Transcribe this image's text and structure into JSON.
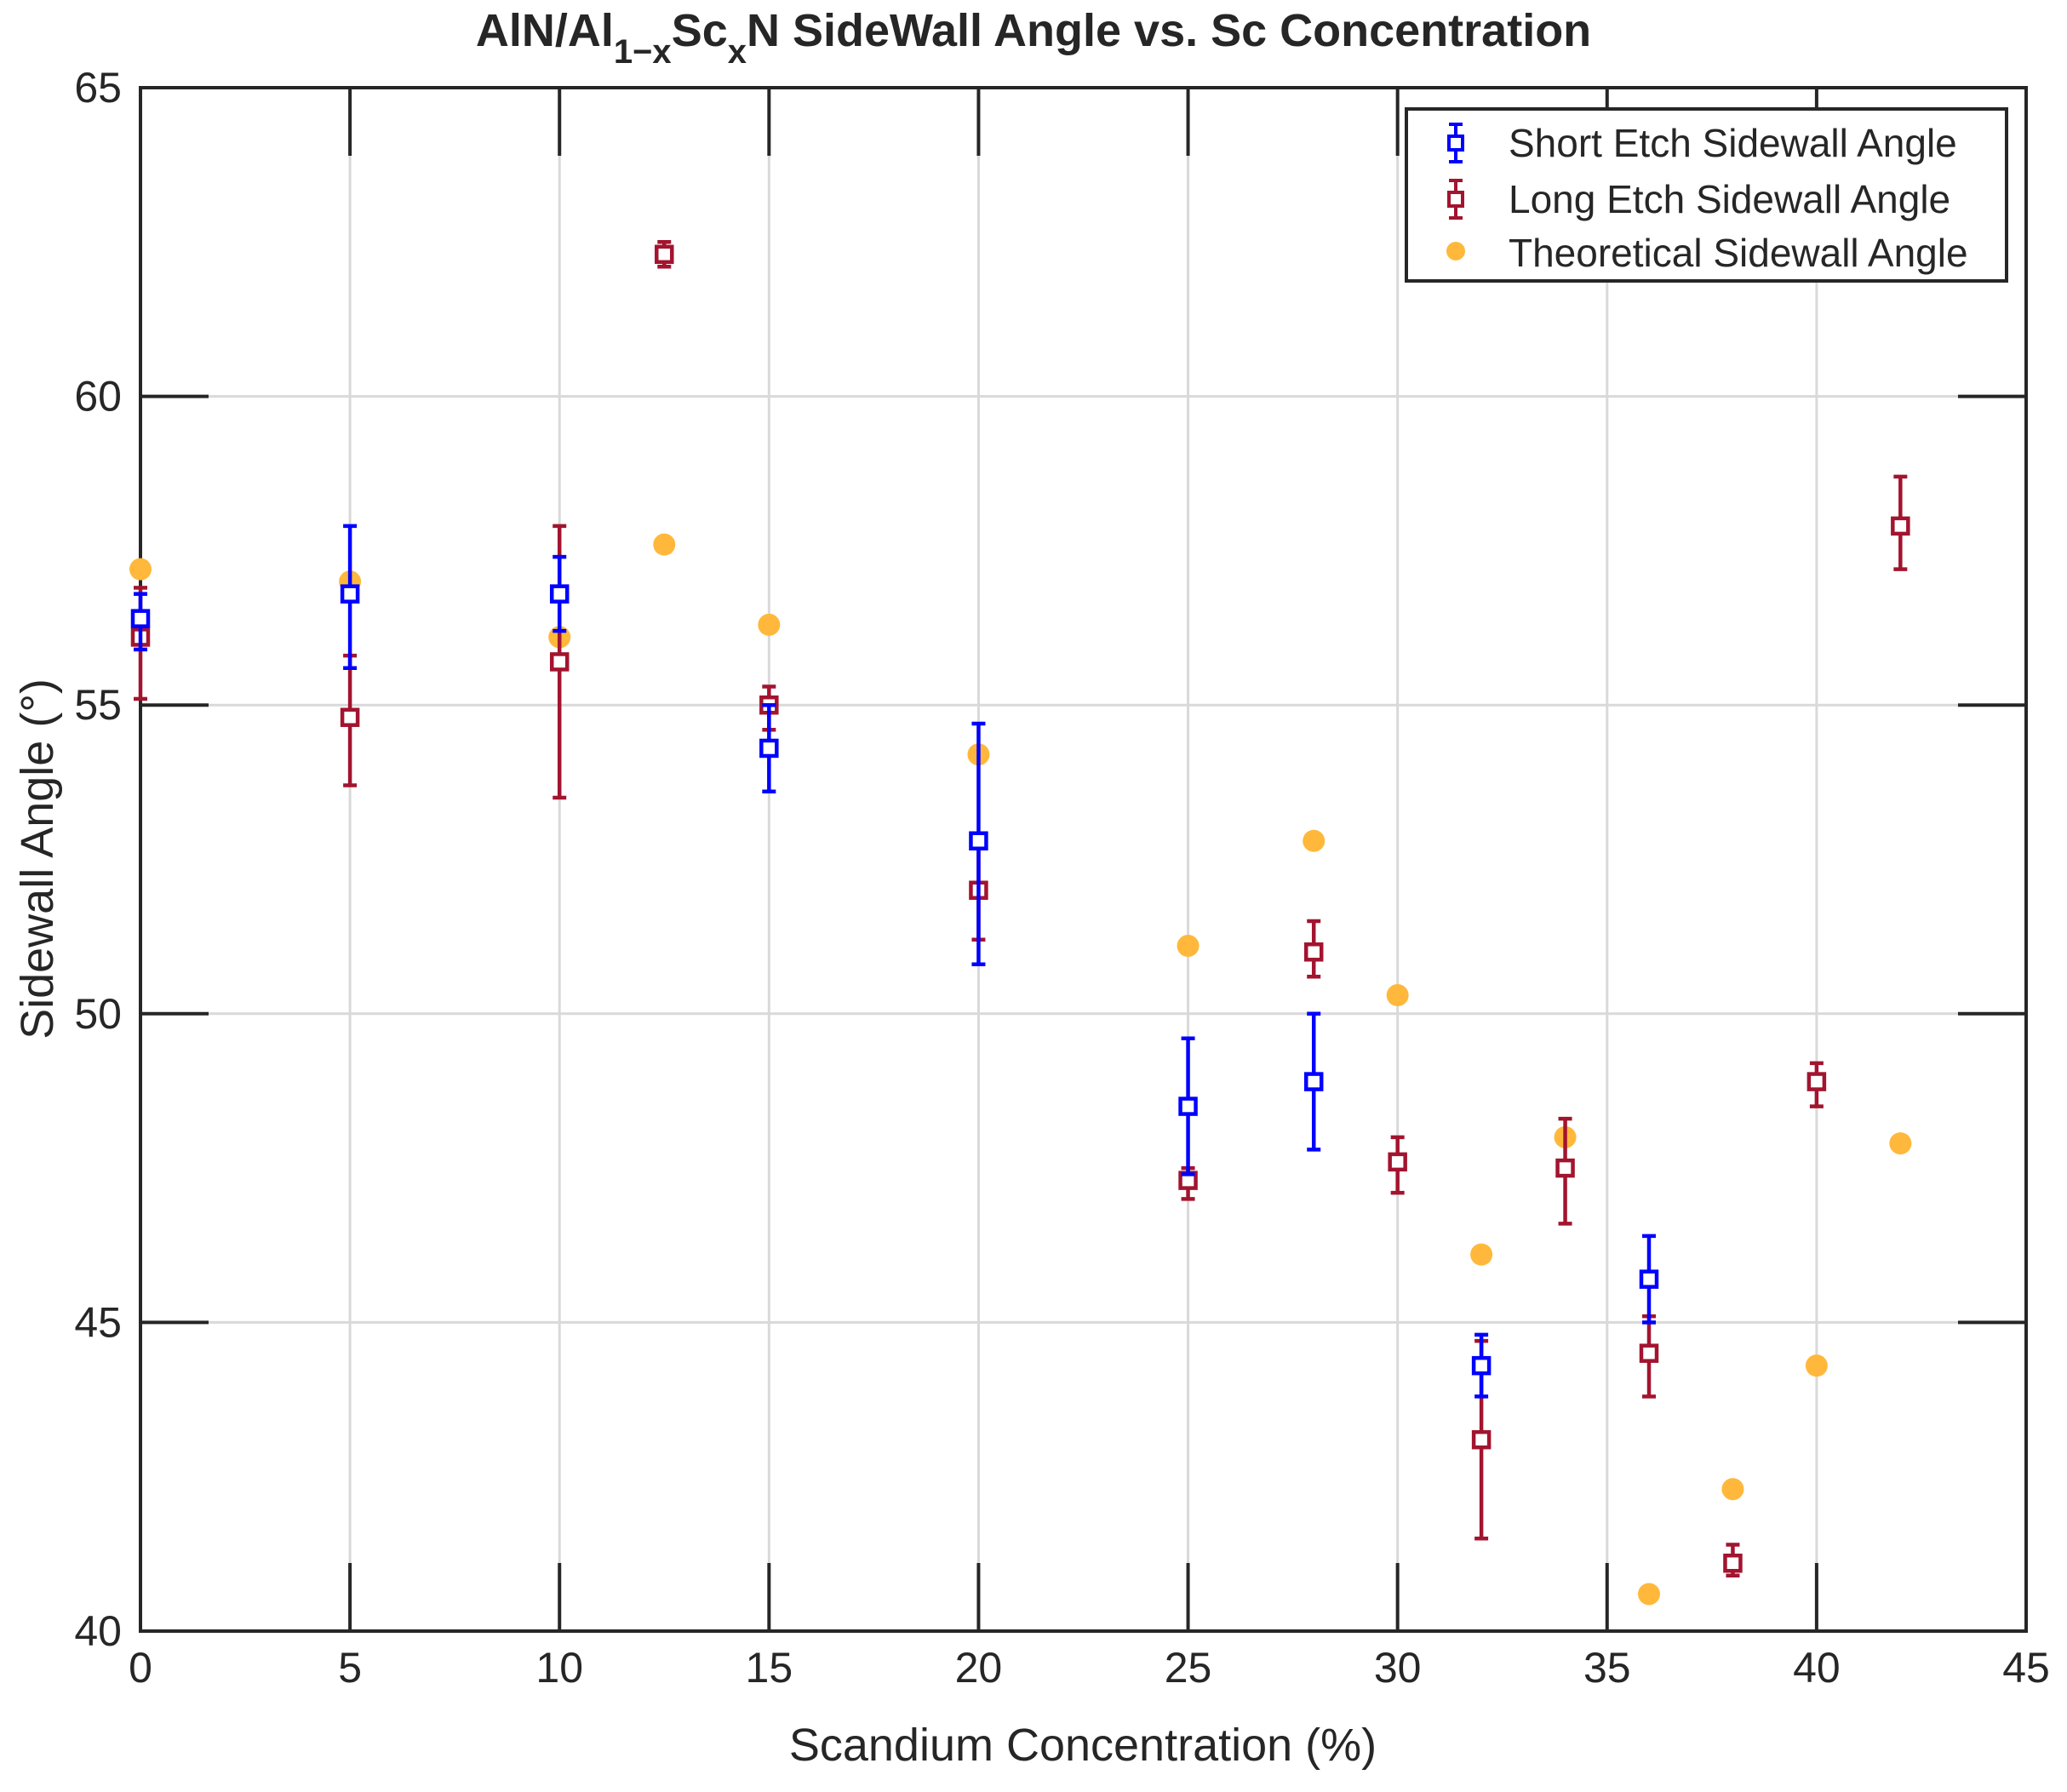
{
  "chart_data": {
    "type": "scatter",
    "title": {
      "prefix": "AlN/Al",
      "sub1": "1−x",
      "mid": "Sc",
      "sub2": "x",
      "suffix": "N SideWall Angle vs. Sc Concentration"
    },
    "xlabel": "Scandium Concentration (%)",
    "ylabel": "Sidewall Angle (°)",
    "xlim": [
      0,
      45
    ],
    "ylim": [
      40,
      65
    ],
    "xticks": [
      0,
      5,
      10,
      15,
      20,
      25,
      30,
      35,
      40,
      45
    ],
    "yticks": [
      40,
      45,
      50,
      55,
      60,
      65
    ],
    "grid": true,
    "legend_position": "top-right",
    "series": [
      {
        "name": "Short Etch Sidewall Angle",
        "marker": "square-errorbar",
        "color": "#0000FF",
        "points": [
          {
            "x": 0,
            "y": 56.4,
            "lo": 55.9,
            "hi": 56.8
          },
          {
            "x": 5,
            "y": 56.8,
            "lo": 55.6,
            "hi": 57.9
          },
          {
            "x": 10,
            "y": 56.8,
            "lo": 56.2,
            "hi": 57.4
          },
          {
            "x": 15,
            "y": 54.3,
            "lo": 53.6,
            "hi": 55.0
          },
          {
            "x": 20,
            "y": 52.8,
            "lo": 50.8,
            "hi": 54.7
          },
          {
            "x": 25,
            "y": 48.5,
            "lo": 47.4,
            "hi": 49.6
          },
          {
            "x": 28,
            "y": 48.9,
            "lo": 47.8,
            "hi": 50.0
          },
          {
            "x": 32,
            "y": 44.3,
            "lo": 43.8,
            "hi": 44.8
          },
          {
            "x": 36,
            "y": 45.7,
            "lo": 45.0,
            "hi": 46.4
          }
        ]
      },
      {
        "name": "Long Etch Sidewall Angle",
        "marker": "square-errorbar",
        "color": "#A2142F",
        "points": [
          {
            "x": 0,
            "y": 56.1,
            "lo": 55.1,
            "hi": 56.9
          },
          {
            "x": 5,
            "y": 54.8,
            "lo": 53.7,
            "hi": 55.8
          },
          {
            "x": 10,
            "y": 55.7,
            "lo": 53.5,
            "hi": 57.9
          },
          {
            "x": 12.5,
            "y": 62.3,
            "lo": 62.1,
            "hi": 62.5
          },
          {
            "x": 15,
            "y": 55.0,
            "lo": 54.6,
            "hi": 55.3
          },
          {
            "x": 20,
            "y": 52.0,
            "lo": 51.2,
            "hi": 52.8
          },
          {
            "x": 25,
            "y": 47.3,
            "lo": 47.0,
            "hi": 47.5
          },
          {
            "x": 28,
            "y": 51.0,
            "lo": 50.6,
            "hi": 51.5
          },
          {
            "x": 30,
            "y": 47.6,
            "lo": 47.1,
            "hi": 48.0
          },
          {
            "x": 32,
            "y": 43.1,
            "lo": 41.5,
            "hi": 44.7
          },
          {
            "x": 34,
            "y": 47.5,
            "lo": 46.6,
            "hi": 48.3
          },
          {
            "x": 36,
            "y": 44.5,
            "lo": 43.8,
            "hi": 45.1
          },
          {
            "x": 38,
            "y": 41.1,
            "lo": 40.9,
            "hi": 41.4
          },
          {
            "x": 40,
            "y": 48.9,
            "lo": 48.5,
            "hi": 49.2
          },
          {
            "x": 42,
            "y": 57.9,
            "lo": 57.2,
            "hi": 58.7
          }
        ]
      },
      {
        "name": "Theoretical Sidewall Angle",
        "marker": "dot",
        "color": "#FFB83B",
        "points": [
          {
            "x": 0,
            "y": 57.2
          },
          {
            "x": 5,
            "y": 57.0
          },
          {
            "x": 10,
            "y": 56.1
          },
          {
            "x": 12.5,
            "y": 57.6
          },
          {
            "x": 15,
            "y": 56.3
          },
          {
            "x": 20,
            "y": 54.2
          },
          {
            "x": 25,
            "y": 51.1
          },
          {
            "x": 28,
            "y": 52.8
          },
          {
            "x": 30,
            "y": 50.3
          },
          {
            "x": 32,
            "y": 46.1
          },
          {
            "x": 34,
            "y": 48.0
          },
          {
            "x": 36,
            "y": 40.6
          },
          {
            "x": 38,
            "y": 42.3
          },
          {
            "x": 40,
            "y": 44.3
          },
          {
            "x": 42,
            "y": 47.9
          }
        ]
      }
    ]
  }
}
